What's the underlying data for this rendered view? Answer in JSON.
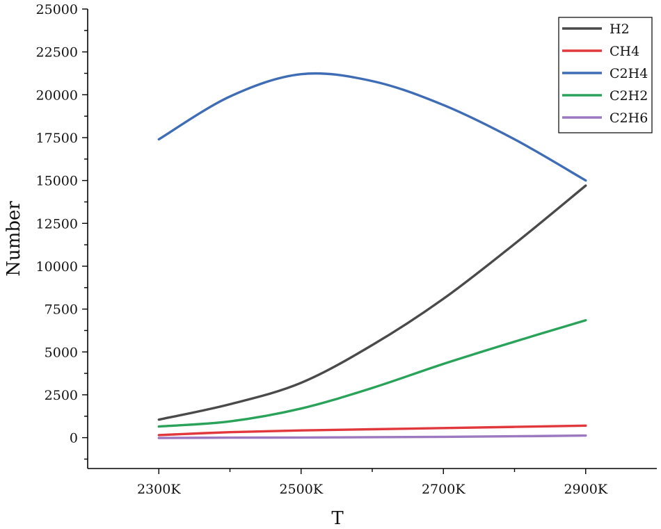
{
  "chart_data": {
    "type": "line",
    "title": "",
    "xlabel": "T",
    "ylabel": "Number",
    "x_values": [
      2300,
      2400,
      2500,
      2600,
      2700,
      2800,
      2900
    ],
    "xlim": [
      2200,
      3000
    ],
    "ylim": [
      -1800,
      25000
    ],
    "x_ticks": [
      {
        "value": 2300,
        "label": "2300K"
      },
      {
        "value": 2500,
        "label": "2500K"
      },
      {
        "value": 2700,
        "label": "2700K"
      },
      {
        "value": 2900,
        "label": "2900K"
      }
    ],
    "x_minor_ticks": [
      2400,
      2600,
      2800
    ],
    "y_ticks": [
      {
        "value": 25000,
        "label": "25000"
      },
      {
        "value": 22500,
        "label": "22500"
      },
      {
        "value": 20000,
        "label": "20000"
      },
      {
        "value": 17500,
        "label": "17500"
      },
      {
        "value": 15000,
        "label": "15000"
      },
      {
        "value": 12500,
        "label": "12500"
      },
      {
        "value": 10000,
        "label": "10000"
      },
      {
        "value": 7500,
        "label": "7500"
      },
      {
        "value": 5000,
        "label": "5000"
      },
      {
        "value": 2500,
        "label": "2500"
      },
      {
        "value": 0,
        "label": "0"
      }
    ],
    "y_minor_ticks": [
      23750,
      21250,
      18750,
      16250,
      13750,
      11250,
      8750,
      6250,
      3750,
      1250,
      -1250
    ],
    "legend_position": "top-right",
    "series": [
      {
        "name": "H2",
        "color": "#4a4a4a",
        "values": [
          1050,
          1950,
          3200,
          5400,
          8100,
          11300,
          14700
        ]
      },
      {
        "name": "CH4",
        "color": "#e0383d",
        "values": [
          150,
          320,
          420,
          490,
          560,
          630,
          700
        ]
      },
      {
        "name": "C2H4",
        "color": "#3f6db5",
        "values": [
          17400,
          19900,
          21200,
          20800,
          19400,
          17400,
          15000
        ]
      },
      {
        "name": "C2H2",
        "color": "#2aa35a",
        "values": [
          650,
          950,
          1700,
          2900,
          4300,
          5600,
          6850
        ]
      },
      {
        "name": "C2H6",
        "color": "#9b78c0",
        "values": [
          -20,
          0,
          10,
          30,
          50,
          80,
          120
        ]
      }
    ]
  }
}
